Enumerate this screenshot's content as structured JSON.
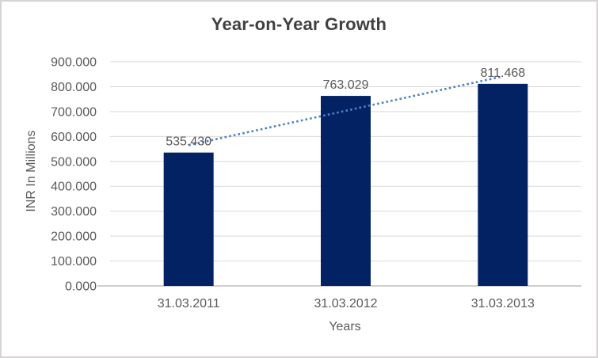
{
  "chart_data": {
    "type": "bar",
    "title": "Year-on-Year Growth",
    "xlabel": "Years",
    "ylabel": "INR In Millions",
    "categories": [
      "31.03.2011",
      "31.03.2012",
      "31.03.2013"
    ],
    "series": [
      {
        "name": "INR In Millions",
        "values": [
          535.43,
          763.029,
          811.468
        ]
      }
    ],
    "data_labels": [
      "535.430",
      "763.029",
      "811.468"
    ],
    "yticks": [
      "0.000",
      "100.000",
      "200.000",
      "300.000",
      "400.000",
      "500.000",
      "600.000",
      "700.000",
      "800.000",
      "900.000"
    ],
    "ylim": [
      0,
      900
    ],
    "grid": true,
    "legend_position": "none",
    "trendline": {
      "type": "linear",
      "style": "dotted"
    },
    "colors": {
      "bar": "#032264",
      "trendline": "#4e81c7",
      "gridline": "#d9d9d9",
      "axis_line": "#bfbfbf",
      "tick_text": "#595959",
      "label_text": "#595959",
      "title_text": "#404040"
    }
  }
}
